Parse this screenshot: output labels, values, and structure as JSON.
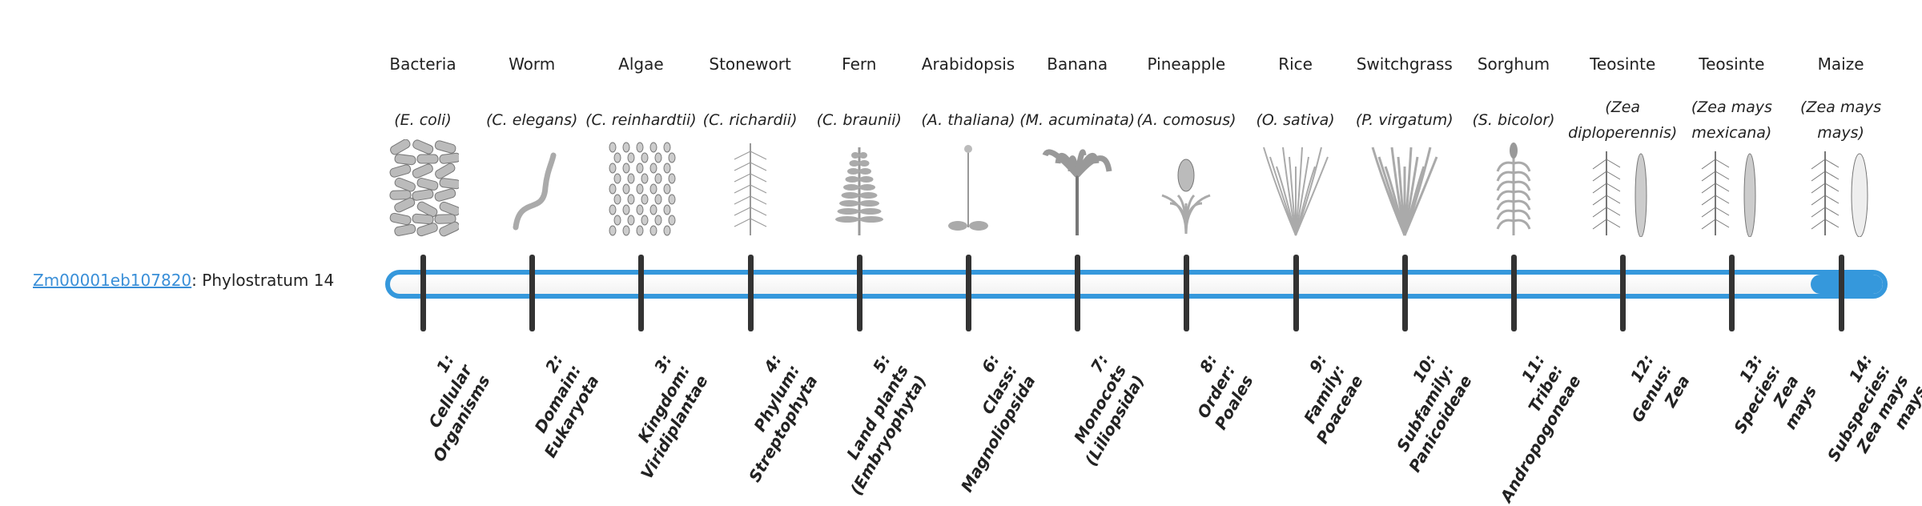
{
  "gene": {
    "id": "Zm00001eb107820",
    "suffix": ": Phylostratum 14",
    "phylostratum": 14
  },
  "colors": {
    "accent": "#3598dc",
    "tick": "#333333",
    "link": "#3a8fd8"
  },
  "organisms": [
    {
      "common": "Bacteria",
      "sci": "(E. coli)",
      "icon": "bacteria-image",
      "label": [
        "1:",
        "Cellular",
        "Organisms"
      ]
    },
    {
      "common": "Worm",
      "sci": "(C. elegans)",
      "icon": "worm-image",
      "label": [
        "2:",
        "Domain:",
        "Eukaryota"
      ]
    },
    {
      "common": "Algae",
      "sci": "(C. reinhardtii)",
      "icon": "algae-image",
      "label": [
        "3:",
        "Kingdom:",
        "Viridiplantae"
      ]
    },
    {
      "common": "Stonewort",
      "sci": "(C. richardii)",
      "icon": "stonewort-image",
      "label": [
        "4:",
        "Phylum:",
        "Streptophyta"
      ]
    },
    {
      "common": "Fern",
      "sci": "(C. braunii)",
      "icon": "fern-image",
      "label": [
        "5:",
        "Land plants",
        "(Embryophyta)"
      ]
    },
    {
      "common": "Arabidopsis",
      "sci": "(A. thaliana)",
      "icon": "arabidopsis-image",
      "label": [
        "6:",
        "Class:",
        "Magnoliopsida"
      ]
    },
    {
      "common": "Banana",
      "sci": "(M. acuminata)",
      "icon": "banana-image",
      "label": [
        "7:",
        "Monocots",
        "(Liliopsida)"
      ]
    },
    {
      "common": "Pineapple",
      "sci": "(A. comosus)",
      "icon": "pineapple-image",
      "label": [
        "8:",
        "Order:",
        "Poales"
      ]
    },
    {
      "common": "Rice",
      "sci": "(O. sativa)",
      "icon": "rice-image",
      "label": [
        "9:",
        "Family:",
        "Poaceae"
      ]
    },
    {
      "common": "Switchgrass",
      "sci": "(P. virgatum)",
      "icon": "switchgrass-image",
      "label": [
        "10:",
        "Subfamily:",
        "Panicoideae"
      ]
    },
    {
      "common": "Sorghum",
      "sci": "(S. bicolor)",
      "icon": "sorghum-image",
      "label": [
        "11:",
        "Tribe:",
        "Andropogoneae"
      ]
    },
    {
      "common": "Teosinte",
      "sci": "(Zea diploperennis)",
      "icon": "teosinte-image",
      "label": [
        "12:",
        "Genus:",
        "Zea"
      ]
    },
    {
      "common": "Teosinte",
      "sci": "(Zea mays mexicana)",
      "icon": "teosinte-mexicana-image",
      "label": [
        "13:",
        "Species:",
        "Zea",
        "mays"
      ]
    },
    {
      "common": "Maize",
      "sci": "(Zea mays mays)",
      "icon": "maize-image",
      "label": [
        "14:",
        "Subspecies:",
        "Zea mays",
        "mays"
      ]
    }
  ]
}
